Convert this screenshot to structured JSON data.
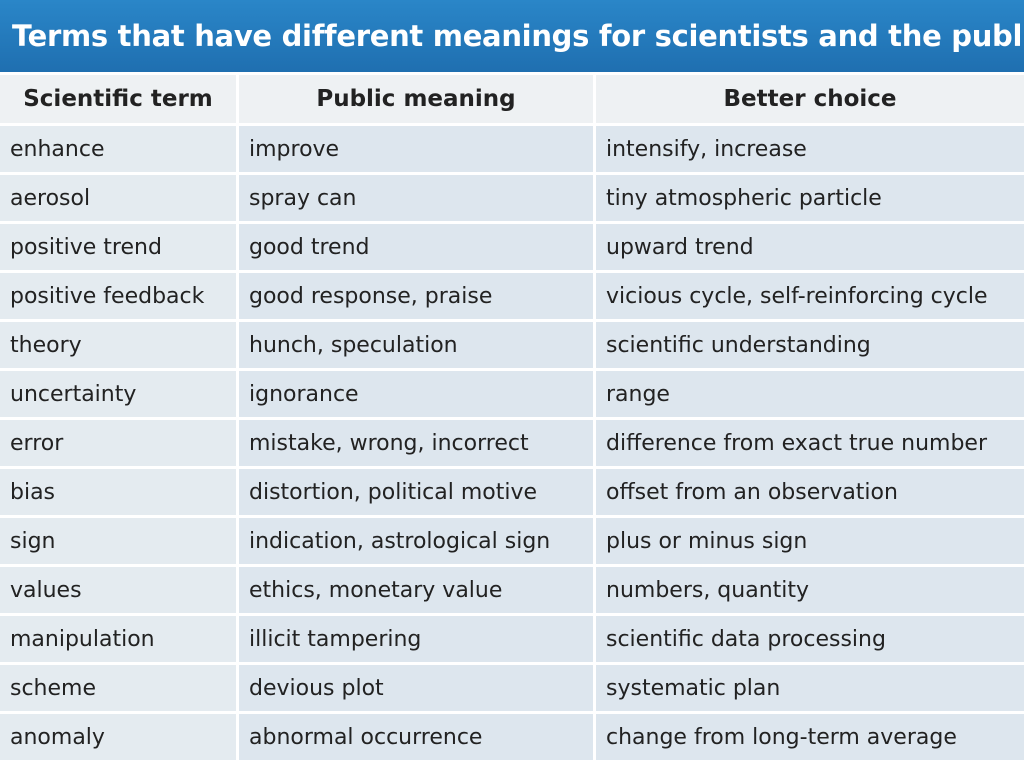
{
  "title": "Terms that have different meanings for scientists and the public",
  "table": {
    "header": [
      "Scientific term",
      "Public meaning",
      "Better choice"
    ],
    "rows": [
      [
        "enhance",
        "improve",
        "intensify, increase"
      ],
      [
        "aerosol",
        "spray can",
        "tiny atmospheric particle"
      ],
      [
        "positive trend",
        "good trend",
        "upward trend"
      ],
      [
        "positive feedback",
        "good response, praise",
        "vicious cycle, self-reinforcing cycle"
      ],
      [
        "theory",
        "hunch, speculation",
        "scientific understanding"
      ],
      [
        "uncertainty",
        "ignorance",
        "range"
      ],
      [
        "error",
        "mistake, wrong, incorrect",
        "difference from exact true number"
      ],
      [
        "bias",
        "distortion, political motive",
        "offset from an observation"
      ],
      [
        "sign",
        "indication, astrological sign",
        "plus or minus sign"
      ],
      [
        "values",
        "ethics, monetary value",
        "numbers, quantity"
      ],
      [
        "manipulation",
        "illicit tampering",
        "scientific data processing"
      ],
      [
        "scheme",
        "devious plot",
        "systematic plan"
      ],
      [
        "anomaly",
        "abnormal occurrence",
        "change from long-term average"
      ]
    ]
  }
}
